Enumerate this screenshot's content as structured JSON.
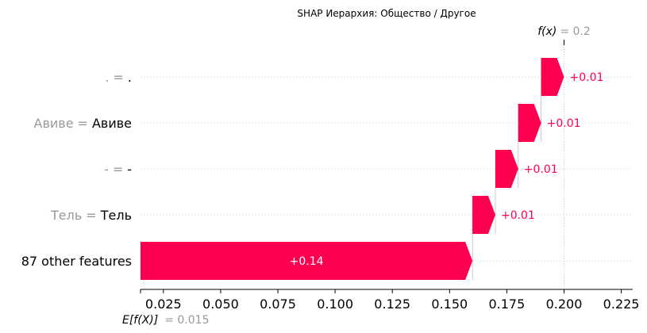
{
  "chart_data": {
    "type": "waterfall",
    "title": "SHAP Иерархия: Общество / Другое",
    "base_value": 0.015,
    "base_value_label": "E[f(X)]",
    "base_value_text": "= 0.015",
    "output_value": 0.2,
    "output_value_label": "f(x)",
    "output_value_text": "= 0.2",
    "xlim": [
      0.015,
      0.23
    ],
    "xticks": [
      0.025,
      0.05,
      0.075,
      0.1,
      0.125,
      0.15,
      0.175,
      0.2,
      0.225
    ],
    "xtick_labels": [
      "0.025",
      "0.050",
      "0.075",
      "0.100",
      "0.125",
      "0.150",
      "0.175",
      "0.200",
      "0.225"
    ],
    "grid": true,
    "features": [
      {
        "name": ".",
        "eq": "=",
        "value": ".",
        "shap": 0.01,
        "label": "+0.01"
      },
      {
        "name": "Авиве",
        "eq": "=",
        "value": "Авиве",
        "shap": 0.01,
        "label": "+0.01"
      },
      {
        "name": "-",
        "eq": "=",
        "value": "-",
        "shap": 0.01,
        "label": "+0.01"
      },
      {
        "name": "Тель",
        "eq": "=",
        "value": "Тель",
        "shap": 0.01,
        "label": "+0.01"
      },
      {
        "name": "87 other features",
        "eq": "",
        "value": "",
        "shap": 0.145,
        "label": "+0.14",
        "is_other": true
      }
    ],
    "colors": {
      "positive": "#ff0051",
      "muted": "#999999",
      "gridline": "#cccccc"
    }
  }
}
